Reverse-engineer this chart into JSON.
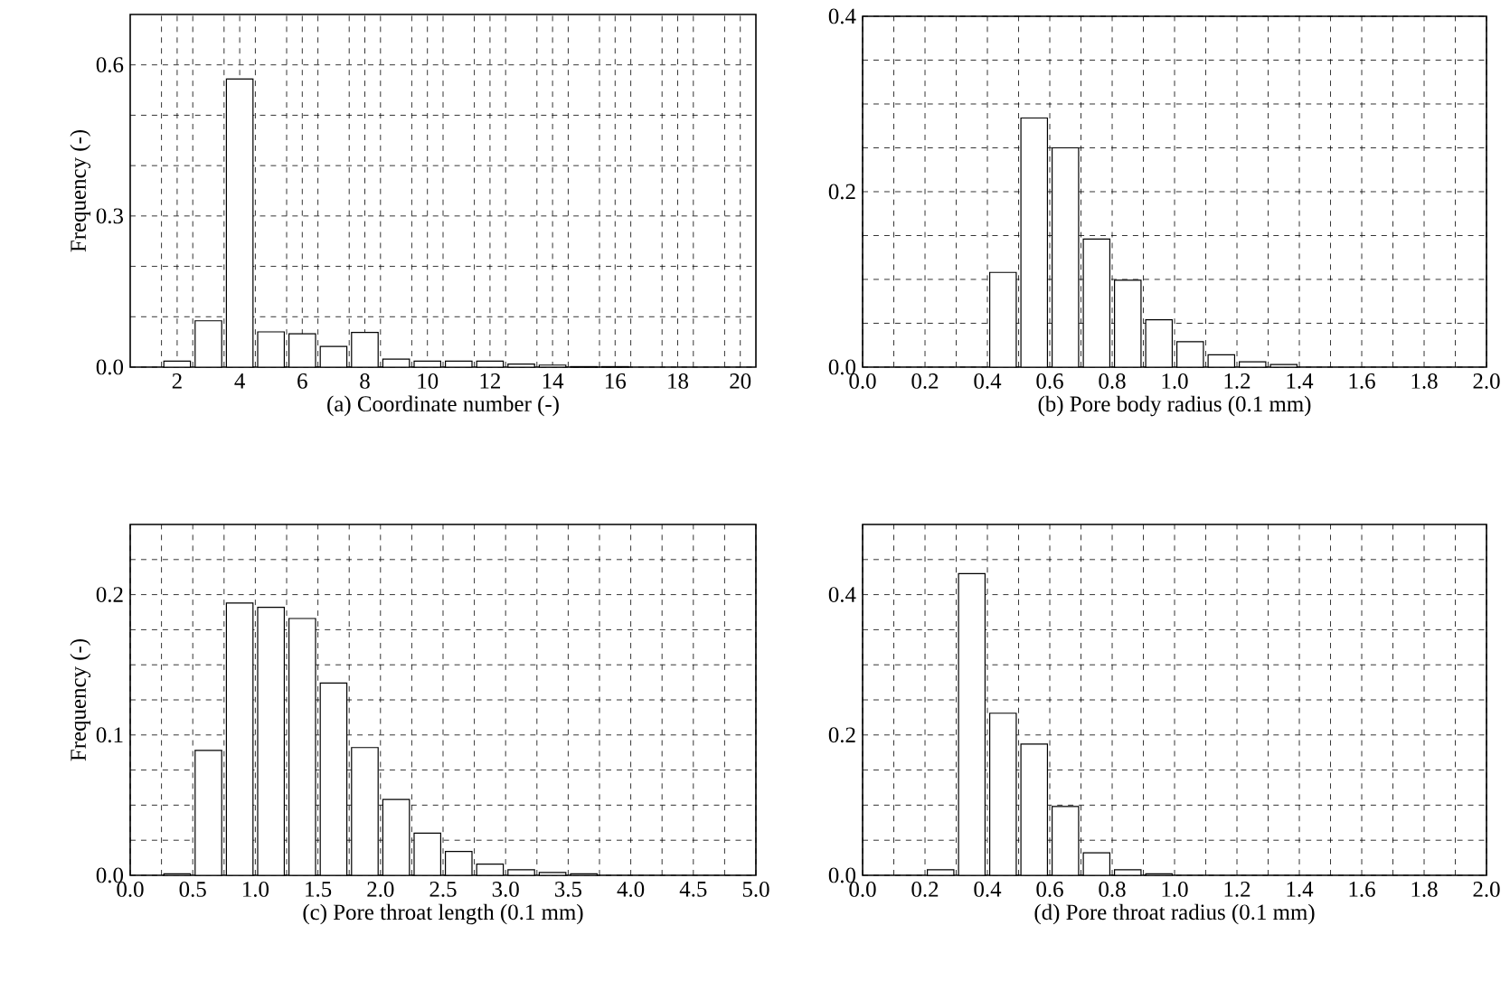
{
  "chart_data": [
    {
      "type": "bar",
      "xlabel": "(a) Coordinate number (-)",
      "ylabel": "Frequency (-)",
      "color": "#ffffff",
      "grid": true,
      "categories": [
        null,
        "2",
        null,
        "4",
        null,
        "6",
        null,
        "8",
        null,
        "10",
        null,
        "12",
        null,
        "14",
        null,
        "16",
        null,
        "18",
        null,
        "20"
      ],
      "values": [
        0,
        0.012,
        0.092,
        0.572,
        0.07,
        0.066,
        0.041,
        0.069,
        0.016,
        0.012,
        0.012,
        0.012,
        0.006,
        0.004,
        0.001,
        0.001,
        0,
        0,
        0,
        0
      ],
      "ylim": [
        0,
        0.7
      ],
      "yticks": [
        {
          "value": 0,
          "label": "0.0"
        },
        {
          "value": 0.1,
          "label": null
        },
        {
          "value": 0.2,
          "label": null
        },
        0.3,
        {
          "value": 0.4,
          "label": null
        },
        {
          "value": 0.5,
          "label": null
        },
        0.6
      ]
    },
    {
      "type": "histogram",
      "xlabel": "(b) Pore body radius (0.1 mm)",
      "color": "#ffffff",
      "grid": true,
      "bins": [
        0,
        0.1,
        0.2,
        0.3,
        0.4,
        0.5,
        0.6,
        0.7,
        0.8,
        0.9,
        1.0,
        1.1,
        1.2,
        1.3,
        1.4,
        1.5,
        1.6,
        1.7,
        1.8,
        1.9,
        2.0
      ],
      "values": [
        0,
        0,
        0,
        0,
        0.108,
        0.284,
        0.25,
        0.146,
        0.099,
        0.054,
        0.029,
        0.014,
        0.006,
        0.003,
        null,
        0,
        0,
        0,
        0,
        0
      ],
      "xlim": [
        0,
        2
      ],
      "xticks": [
        {
          "value": 0,
          "label": "0.0"
        },
        {
          "value": 0.1,
          "label": null
        },
        0.2,
        {
          "value": 0.3,
          "label": null
        },
        0.4,
        {
          "value": 0.5,
          "label": null
        },
        0.6,
        {
          "value": 0.7,
          "label": null
        },
        0.8,
        {
          "value": 0.9,
          "label": null
        },
        {
          "value": 1,
          "label": "1.0"
        },
        {
          "value": 1.1,
          "label": null
        },
        1.2,
        {
          "value": 1.3,
          "label": null
        },
        1.4,
        {
          "value": 1.5,
          "label": null
        },
        1.6,
        {
          "value": 1.7,
          "label": null
        },
        1.8,
        {
          "value": 1.9,
          "label": null
        },
        {
          "value": 2,
          "label": "2.0"
        }
      ],
      "ylim": [
        0,
        0.4
      ],
      "yticks": [
        {
          "value": 0,
          "label": "0.0"
        },
        {
          "value": 0.05,
          "label": null
        },
        {
          "value": 0.1,
          "label": null
        },
        {
          "value": 0.15,
          "label": null
        },
        0.2,
        {
          "value": 0.25,
          "label": null
        },
        {
          "value": 0.3,
          "label": null
        },
        {
          "value": 0.35,
          "label": null
        },
        0.4
      ]
    },
    {
      "type": "histogram",
      "xlabel": "(c) Pore throat length (0.1 mm)",
      "ylabel": "Frequency (-)",
      "color": "#ffffff",
      "grid": true,
      "bins": [
        0,
        0.25,
        0.5,
        0.75,
        1.0,
        1.25,
        1.5,
        1.75,
        2.0,
        2.25,
        2.5,
        2.75,
        3.0,
        3.25,
        3.5,
        3.75,
        4.0,
        4.25,
        4.5,
        4.75,
        5.0
      ],
      "values": [
        0,
        0.001,
        0.089,
        0.194,
        0.191,
        0.183,
        0.137,
        0.091,
        0.054,
        0.03,
        0.017,
        0.008,
        0.004,
        0.002,
        0.001,
        0,
        0,
        0,
        0,
        0
      ],
      "xlim": [
        0,
        5
      ],
      "xticks": [
        {
          "value": 0,
          "label": "0.0"
        },
        {
          "value": 0.25,
          "label": null
        },
        0.5,
        {
          "value": 0.75,
          "label": null
        },
        {
          "value": 1,
          "label": "1.0"
        },
        {
          "value": 1.25,
          "label": null
        },
        1.5,
        {
          "value": 1.75,
          "label": null
        },
        {
          "value": 2,
          "label": "2.0"
        },
        {
          "value": 2.25,
          "label": null
        },
        2.5,
        {
          "value": 2.75,
          "label": null
        },
        {
          "value": 3,
          "label": "3.0"
        },
        {
          "value": 3.25,
          "label": null
        },
        3.5,
        {
          "value": 3.75,
          "label": null
        },
        {
          "value": 4,
          "label": "4.0"
        },
        {
          "value": 4.25,
          "label": null
        },
        4.5,
        {
          "value": 4.75,
          "label": null
        },
        {
          "value": 5,
          "label": "5.0"
        }
      ],
      "ylim": [
        0,
        0.25
      ],
      "yticks": [
        {
          "value": 0,
          "label": "0.0"
        },
        {
          "value": 0.025,
          "label": null
        },
        {
          "value": 0.05,
          "label": null
        },
        {
          "value": 0.075,
          "label": null
        },
        0.1,
        {
          "value": 0.125,
          "label": null
        },
        {
          "value": 0.15,
          "label": null
        },
        {
          "value": 0.175,
          "label": null
        },
        0.2,
        {
          "value": 0.225,
          "label": null
        }
      ]
    },
    {
      "type": "histogram",
      "xlabel": "(d) Pore throat radius (0.1 mm)",
      "color": "#ffffff",
      "grid": true,
      "bins": [
        0,
        0.1,
        0.2,
        0.3,
        0.4,
        0.5,
        0.6,
        0.7,
        0.8,
        0.9,
        1.0,
        1.1,
        1.2,
        1.3,
        1.4,
        1.5,
        1.6,
        1.7,
        1.8,
        1.9,
        2.0
      ],
      "values": [
        0,
        0,
        0.008,
        0.43,
        0.231,
        0.187,
        0.098,
        0.032,
        0.008,
        0.002,
        0,
        0,
        0,
        0,
        0,
        0,
        0,
        0,
        0,
        0
      ],
      "xlim": [
        0,
        2
      ],
      "xticks": [
        {
          "value": 0,
          "label": "0.0"
        },
        {
          "value": 0.1,
          "label": null
        },
        0.2,
        {
          "value": 0.3,
          "label": null
        },
        0.4,
        {
          "value": 0.5,
          "label": null
        },
        0.6,
        {
          "value": 0.7,
          "label": null
        },
        0.8,
        {
          "value": 0.9,
          "label": null
        },
        {
          "value": 1,
          "label": "1.0"
        },
        {
          "value": 1.1,
          "label": null
        },
        1.2,
        {
          "value": 1.3,
          "label": null
        },
        1.4,
        {
          "value": 1.5,
          "label": null
        },
        1.6,
        {
          "value": 1.7,
          "label": null
        },
        1.8,
        {
          "value": 1.9,
          "label": null
        },
        {
          "value": 2,
          "label": "2.0"
        }
      ],
      "ylim": [
        0,
        0.5
      ],
      "yticks": [
        {
          "value": 0,
          "label": "0.0"
        },
        {
          "value": 0.05,
          "label": null
        },
        {
          "value": 0.1,
          "label": null
        },
        {
          "value": 0.15,
          "label": null
        },
        0.2,
        {
          "value": 0.25,
          "label": null
        },
        {
          "value": 0.3,
          "label": null
        },
        {
          "value": 0.35,
          "label": null
        },
        0.4,
        {
          "value": 0.45,
          "label": null
        }
      ]
    }
  ]
}
